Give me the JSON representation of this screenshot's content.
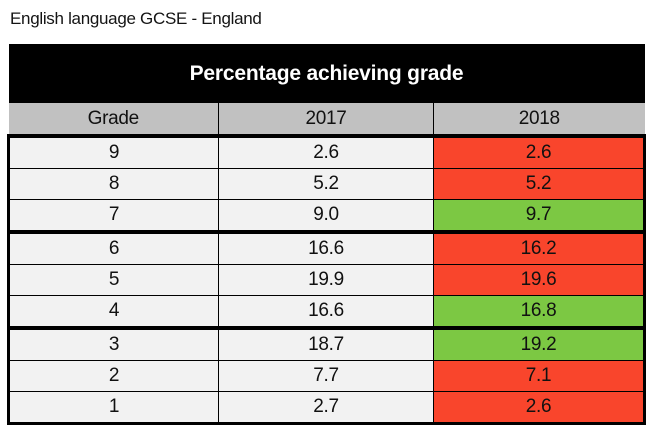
{
  "page_title": "English language GCSE - England",
  "table": {
    "banner": "Percentage achieving grade",
    "columns": [
      "Grade",
      "2017",
      "2018"
    ],
    "rows": [
      {
        "grade": "9",
        "y2017": "2.6",
        "y2018": "2.6",
        "change": "down"
      },
      {
        "grade": "8",
        "y2017": "5.2",
        "y2018": "5.2",
        "change": "down"
      },
      {
        "grade": "7",
        "y2017": "9.0",
        "y2018": "9.7",
        "change": "up",
        "group_end": true
      },
      {
        "grade": "6",
        "y2017": "16.6",
        "y2018": "16.2",
        "change": "down"
      },
      {
        "grade": "5",
        "y2017": "19.9",
        "y2018": "19.6",
        "change": "down"
      },
      {
        "grade": "4",
        "y2017": "16.6",
        "y2018": "16.8",
        "change": "up",
        "group_end": true
      },
      {
        "grade": "3",
        "y2017": "18.7",
        "y2018": "19.2",
        "change": "up"
      },
      {
        "grade": "2",
        "y2017": "7.7",
        "y2018": "7.1",
        "change": "down"
      },
      {
        "grade": "1",
        "y2017": "2.7",
        "y2018": "2.6",
        "change": "down"
      }
    ],
    "colors": {
      "decrease_or_same": "#F9452C",
      "increase": "#7CC843",
      "header_background": "#C1C1C1",
      "banner_background": "#000000",
      "row_background": "#F2F2F2"
    }
  },
  "chart_data": {
    "type": "table",
    "title": "Percentage achieving grade",
    "caption": "English language GCSE - England",
    "columns": [
      "Grade",
      "2017",
      "2018"
    ],
    "categories": [
      "9",
      "8",
      "7",
      "6",
      "5",
      "4",
      "3",
      "2",
      "1"
    ],
    "series": [
      {
        "name": "2017",
        "values": [
          2.6,
          5.2,
          9.0,
          16.6,
          19.9,
          16.6,
          18.7,
          7.7,
          2.7
        ]
      },
      {
        "name": "2018",
        "values": [
          2.6,
          5.2,
          9.7,
          16.2,
          19.6,
          16.8,
          19.2,
          7.1,
          2.6
        ]
      }
    ],
    "highlight_rules": {
      "increase": "#7CC843",
      "decrease_or_same": "#F9452C",
      "applies_to_series": "2018"
    },
    "group_dividers_after_grades": [
      "7",
      "4"
    ]
  }
}
